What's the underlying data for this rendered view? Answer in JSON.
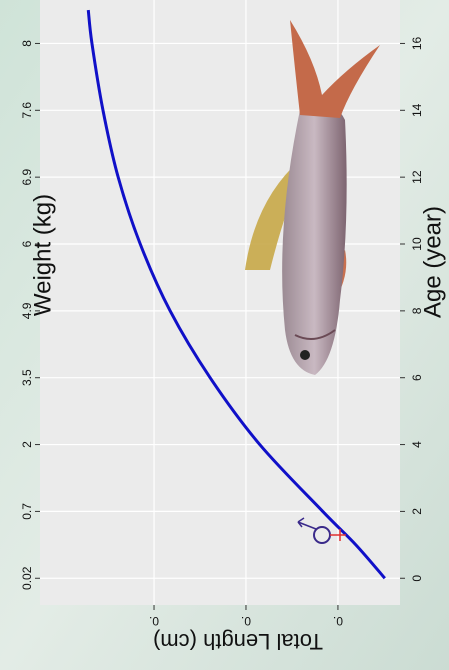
{
  "chart_data": {
    "type": "line",
    "x_label": "Age (year)",
    "y_label": "Total Length (cm)",
    "secondary_label": "Weight (kg)",
    "xlim": [
      -0.8,
      17.3
    ],
    "xticks": [
      0,
      2,
      4,
      6,
      8,
      10,
      12,
      14,
      16
    ],
    "weight_labels": [
      0.02,
      0.7,
      2,
      3.5,
      4.9,
      6,
      6.9,
      7.6,
      8
    ],
    "ylim": [
      6.5,
      84.8
    ],
    "yticks": [
      {
        "value": 20,
        "label": "0."
      },
      {
        "value": 40,
        "label": "0."
      },
      {
        "value": 60,
        "label": "0."
      }
    ],
    "x": [
      0,
      1,
      2,
      4,
      6,
      8,
      10,
      12,
      14,
      16,
      17
    ],
    "values": [
      9.8,
      16.1,
      23.3,
      37,
      47.8,
      56.5,
      63,
      67.8,
      71.1,
      73.5,
      74.3
    ],
    "color": "#1010c8",
    "grid": true
  }
}
